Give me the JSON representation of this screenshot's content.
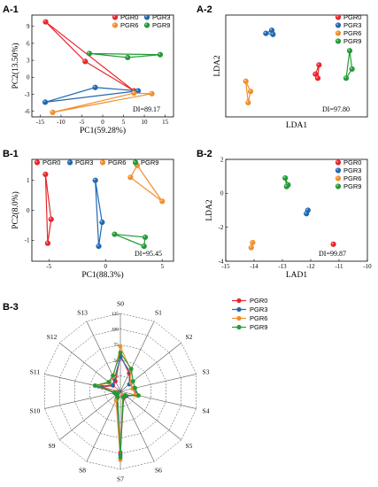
{
  "colors": {
    "PGR0": "#e8262c",
    "PGR3": "#2168b0",
    "PGR6": "#f28e2b",
    "PGR9": "#239b35"
  },
  "chart_data": [
    {
      "id": "A1",
      "panel_label": "A-1",
      "type": "scatter",
      "xlabel": "PC1(59.28%)",
      "ylabel": "PC2(13.50%)",
      "xlim": [
        -17,
        17
      ],
      "ylim": [
        -7,
        11
      ],
      "xticks": [
        -15,
        -10,
        -5,
        0,
        5,
        10,
        15
      ],
      "yticks": [
        -6,
        -3,
        0,
        3,
        6,
        9
      ],
      "annotation": "DI=89.17",
      "legend": [
        "PGR0",
        "PGR3",
        "PGR6",
        "PGR9"
      ],
      "series": [
        {
          "name": "PGR0",
          "points": [
            [
              -13.7,
              9.8
            ],
            [
              -4.2,
              2.8
            ],
            [
              7.5,
              -2.4
            ]
          ]
        },
        {
          "name": "PGR3",
          "points": [
            [
              -13.8,
              -4.4
            ],
            [
              -1.8,
              -1.8
            ],
            [
              8.5,
              -2.4
            ]
          ]
        },
        {
          "name": "PGR6",
          "points": [
            [
              -12,
              -6.2
            ],
            [
              7.5,
              -2.8
            ],
            [
              11.8,
              -2.9
            ]
          ]
        },
        {
          "name": "PGR9",
          "points": [
            [
              -3.2,
              4.2
            ],
            [
              6.0,
              3.5
            ],
            [
              13.8,
              4.0
            ]
          ]
        }
      ]
    },
    {
      "id": "A2",
      "panel_label": "A-2",
      "type": "scatter",
      "xlabel": "LDA1",
      "ylabel": "LDA2",
      "xlim": [
        -6,
        6
      ],
      "ylim": [
        -5,
        5
      ],
      "annotation": "DI=97.80",
      "legend": [
        "PGR0",
        "PGR3",
        "PGR6",
        "PGR9"
      ],
      "series": [
        {
          "name": "PGR0",
          "points": [
            [
              1.9,
              0.1
            ],
            [
              1.6,
              -0.8
            ],
            [
              1.8,
              -1.2
            ]
          ]
        },
        {
          "name": "PGR3",
          "points": [
            [
              -2.6,
              3.2
            ],
            [
              -2.1,
              3.5
            ],
            [
              -2.0,
              3.1
            ]
          ]
        },
        {
          "name": "PGR6",
          "points": [
            [
              -4.3,
              -1.5
            ],
            [
              -3.9,
              -2.5
            ],
            [
              -4.1,
              -3.6
            ]
          ]
        },
        {
          "name": "PGR9",
          "points": [
            [
              4.5,
              1.5
            ],
            [
              4.7,
              -0.3
            ],
            [
              4.2,
              -1.2
            ]
          ]
        }
      ]
    },
    {
      "id": "B1",
      "panel_label": "B-1",
      "type": "scatter",
      "xlabel": "PC1(88.3%)",
      "ylabel": "PC2(8.0%)",
      "xlim": [
        -6.5,
        6
      ],
      "ylim": [
        -1.7,
        1.7
      ],
      "xticks": [
        -5,
        0,
        5
      ],
      "yticks": [
        -1,
        0,
        1
      ],
      "annotation": "DI=95.45",
      "legend": [
        "PGR0",
        "PGR3",
        "PGR6",
        "PGR9"
      ],
      "series": [
        {
          "name": "PGR0",
          "points": [
            [
              -5.3,
              1.2
            ],
            [
              -4.8,
              -0.3
            ],
            [
              -5.1,
              -1.1
            ]
          ]
        },
        {
          "name": "PGR3",
          "points": [
            [
              -0.9,
              1.0
            ],
            [
              -0.3,
              -0.4
            ],
            [
              -0.6,
              -1.2
            ]
          ]
        },
        {
          "name": "PGR6",
          "points": [
            [
              2.2,
              1.1
            ],
            [
              2.8,
              1.5
            ],
            [
              5.0,
              0.3
            ]
          ]
        },
        {
          "name": "PGR9",
          "points": [
            [
              0.8,
              -0.8
            ],
            [
              3.5,
              -0.9
            ],
            [
              3.4,
              -1.2
            ]
          ]
        }
      ]
    },
    {
      "id": "B2",
      "panel_label": "B-2",
      "type": "scatter",
      "xlabel": "LAD1",
      "ylabel": "LDA2",
      "xlim": [
        -15,
        -10
      ],
      "ylim": [
        -4,
        2
      ],
      "xticks": [
        -15,
        -14,
        -13,
        -12,
        -11,
        -10
      ],
      "yticks": [
        -4,
        -2,
        0,
        2
      ],
      "annotation": "DI=99.87",
      "legend": [
        "PGR0",
        "PGR3",
        "PGR6",
        "PGR9"
      ],
      "series": [
        {
          "name": "PGR0",
          "points": [
            [
              -11.2,
              -3.0
            ]
          ]
        },
        {
          "name": "PGR3",
          "points": [
            [
              -12.1,
              -1.0
            ],
            [
              -12.15,
              -1.2
            ]
          ]
        },
        {
          "name": "PGR6",
          "points": [
            [
              -14.05,
              -2.9
            ],
            [
              -14.1,
              -3.2
            ]
          ]
        },
        {
          "name": "PGR9",
          "points": [
            [
              -12.9,
              0.9
            ],
            [
              -12.8,
              0.5
            ],
            [
              -12.85,
              0.4
            ]
          ]
        }
      ]
    },
    {
      "id": "B3",
      "panel_label": "B-3",
      "type": "radar",
      "axes": [
        "S0",
        "S1",
        "S2",
        "S3",
        "S4",
        "S5",
        "S6",
        "S7",
        "S8",
        "S9",
        "S10",
        "S11",
        "S12",
        "S13"
      ],
      "rticks": [
        0,
        25,
        50,
        75,
        100,
        125
      ],
      "rlim": [
        0,
        125
      ],
      "legend": [
        "PGR0",
        "PGR3",
        "PGR6",
        "PGR9"
      ],
      "series": [
        {
          "name": "PGR0",
          "values": [
            58,
            32,
            20,
            22,
            25,
            12,
            12,
            98,
            12,
            8,
            8,
            30,
            15,
            18
          ]
        },
        {
          "name": "PGR3",
          "values": [
            55,
            35,
            18,
            24,
            28,
            12,
            10,
            102,
            14,
            8,
            10,
            36,
            16,
            22
          ]
        },
        {
          "name": "PGR6",
          "values": [
            72,
            38,
            22,
            20,
            25,
            10,
            8,
            110,
            16,
            6,
            9,
            40,
            22,
            26
          ]
        },
        {
          "name": "PGR9",
          "values": [
            62,
            40,
            26,
            24,
            30,
            10,
            10,
            106,
            10,
            6,
            10,
            42,
            24,
            28
          ]
        }
      ]
    }
  ]
}
